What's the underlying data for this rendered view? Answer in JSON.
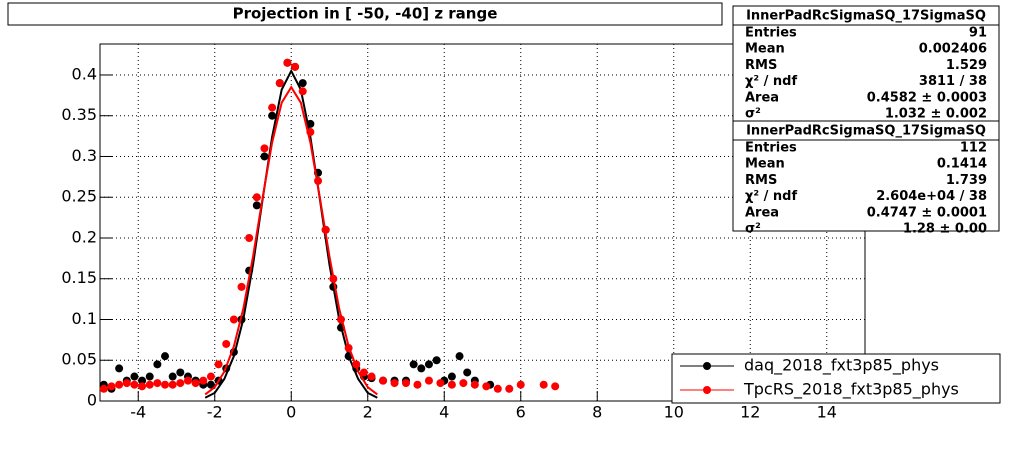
{
  "chart_data": {
    "type": "scatter",
    "title": "Projection in [ -50, -40] z range",
    "xlim": [
      -5,
      15
    ],
    "ylim": [
      0,
      0.438
    ],
    "xticks": [
      -4,
      -2,
      0,
      2,
      4,
      6,
      8,
      10,
      12,
      14
    ],
    "yticks": [
      0,
      0.05,
      0.1,
      0.15,
      0.2,
      0.25,
      0.3,
      0.35,
      0.4
    ],
    "grid": true,
    "legend": "bottom-right",
    "series": [
      {
        "name": "daq_2018_fxt3p85_phys",
        "color": "#000000",
        "x": [
          -4.9,
          -4.7,
          -4.5,
          -4.3,
          -4.1,
          -3.9,
          -3.7,
          -3.5,
          -3.3,
          -3.1,
          -2.9,
          -2.7,
          -2.5,
          -2.3,
          -2.1,
          -1.9,
          -1.7,
          -1.5,
          -1.3,
          -1.1,
          -0.9,
          -0.7,
          -0.5,
          -0.3,
          -0.1,
          0.1,
          0.3,
          0.5,
          0.7,
          0.9,
          1.1,
          1.3,
          1.5,
          1.7,
          1.9,
          2.1,
          2.4,
          2.7,
          3.0,
          3.2,
          3.4,
          3.6,
          3.8,
          4.0,
          4.2,
          4.4,
          4.6,
          4.8,
          5.2
        ],
        "values": [
          0.02,
          0.015,
          0.04,
          0.025,
          0.03,
          0.025,
          0.03,
          0.045,
          0.055,
          0.03,
          0.035,
          0.03,
          0.025,
          0.02,
          0.02,
          0.025,
          0.04,
          0.06,
          0.1,
          0.16,
          0.24,
          0.3,
          0.35,
          0.39,
          0.415,
          0.41,
          0.39,
          0.34,
          0.28,
          0.21,
          0.14,
          0.09,
          0.055,
          0.04,
          0.03,
          0.028,
          0.025,
          0.025,
          0.025,
          0.045,
          0.04,
          0.045,
          0.05,
          0.025,
          0.03,
          0.055,
          0.035,
          0.025,
          0.02
        ],
        "fit": {
          "x": [
            -2.25,
            -2,
            -1.75,
            -1.5,
            -1.25,
            -1,
            -0.75,
            -0.5,
            -0.25,
            0,
            0.25,
            0.5,
            0.75,
            1,
            1.25,
            1.5,
            1.75,
            2,
            2.25
          ],
          "values": [
            0.004,
            0.01,
            0.027,
            0.055,
            0.101,
            0.167,
            0.247,
            0.324,
            0.382,
            0.405,
            0.382,
            0.324,
            0.247,
            0.167,
            0.101,
            0.055,
            0.027,
            0.01,
            0.004
          ]
        }
      },
      {
        "name": "TpcRS_2018_fxt3p85_phys",
        "color": "#ff0000",
        "x": [
          -4.9,
          -4.7,
          -4.5,
          -4.3,
          -4.1,
          -3.9,
          -3.7,
          -3.5,
          -3.3,
          -3.1,
          -2.9,
          -2.7,
          -2.5,
          -2.3,
          -2.1,
          -1.9,
          -1.7,
          -1.5,
          -1.3,
          -1.1,
          -0.9,
          -0.7,
          -0.5,
          -0.3,
          -0.1,
          0.1,
          0.3,
          0.5,
          0.7,
          0.9,
          1.1,
          1.3,
          1.5,
          1.7,
          1.9,
          2.1,
          2.4,
          2.7,
          3.0,
          3.3,
          3.6,
          3.9,
          4.2,
          4.5,
          4.8,
          5.1,
          5.4,
          5.7,
          6.0,
          6.6,
          6.9
        ],
        "values": [
          0.015,
          0.018,
          0.02,
          0.022,
          0.02,
          0.018,
          0.02,
          0.022,
          0.02,
          0.02,
          0.022,
          0.025,
          0.022,
          0.025,
          0.03,
          0.045,
          0.07,
          0.1,
          0.14,
          0.2,
          0.25,
          0.31,
          0.36,
          0.39,
          0.415,
          0.41,
          0.38,
          0.33,
          0.27,
          0.21,
          0.15,
          0.1,
          0.065,
          0.045,
          0.035,
          0.03,
          0.025,
          0.022,
          0.022,
          0.02,
          0.025,
          0.022,
          0.02,
          0.022,
          0.02,
          0.018,
          0.015,
          0.015,
          0.02,
          0.02,
          0.018
        ],
        "fit": {
          "x": [
            -2.25,
            -2,
            -1.75,
            -1.5,
            -1.25,
            -1,
            -0.75,
            -0.5,
            -0.25,
            0,
            0.25,
            0.5,
            0.75,
            1,
            1.25,
            1.5,
            1.75,
            2,
            2.25
          ],
          "values": [
            0.008,
            0.017,
            0.036,
            0.067,
            0.114,
            0.177,
            0.249,
            0.317,
            0.366,
            0.385,
            0.366,
            0.317,
            0.249,
            0.177,
            0.114,
            0.067,
            0.036,
            0.017,
            0.008
          ]
        }
      }
    ],
    "stats": [
      {
        "title": "InnerPadRcSigmaSQ_17SigmaSQ",
        "rows": [
          [
            "Entries",
            "91"
          ],
          [
            "Mean",
            "0.002406"
          ],
          [
            "RMS",
            "1.529"
          ],
          [
            "χ² / ndf",
            "3811 / 38"
          ],
          [
            "Area",
            "0.4582 ± 0.0003"
          ],
          [
            "σ²",
            "1.032 ± 0.002"
          ]
        ]
      },
      {
        "title": "InnerPadRcSigmaSQ_17SigmaSQ",
        "rows": [
          [
            "Entries",
            "112"
          ],
          [
            "Mean",
            "0.1414"
          ],
          [
            "RMS",
            "1.739"
          ],
          [
            "χ² / ndf",
            "2.604e+04 / 38"
          ],
          [
            "Area",
            "0.4747 ± 0.0001"
          ],
          [
            "σ²",
            "1.28 ± 0.00"
          ]
        ]
      }
    ]
  }
}
